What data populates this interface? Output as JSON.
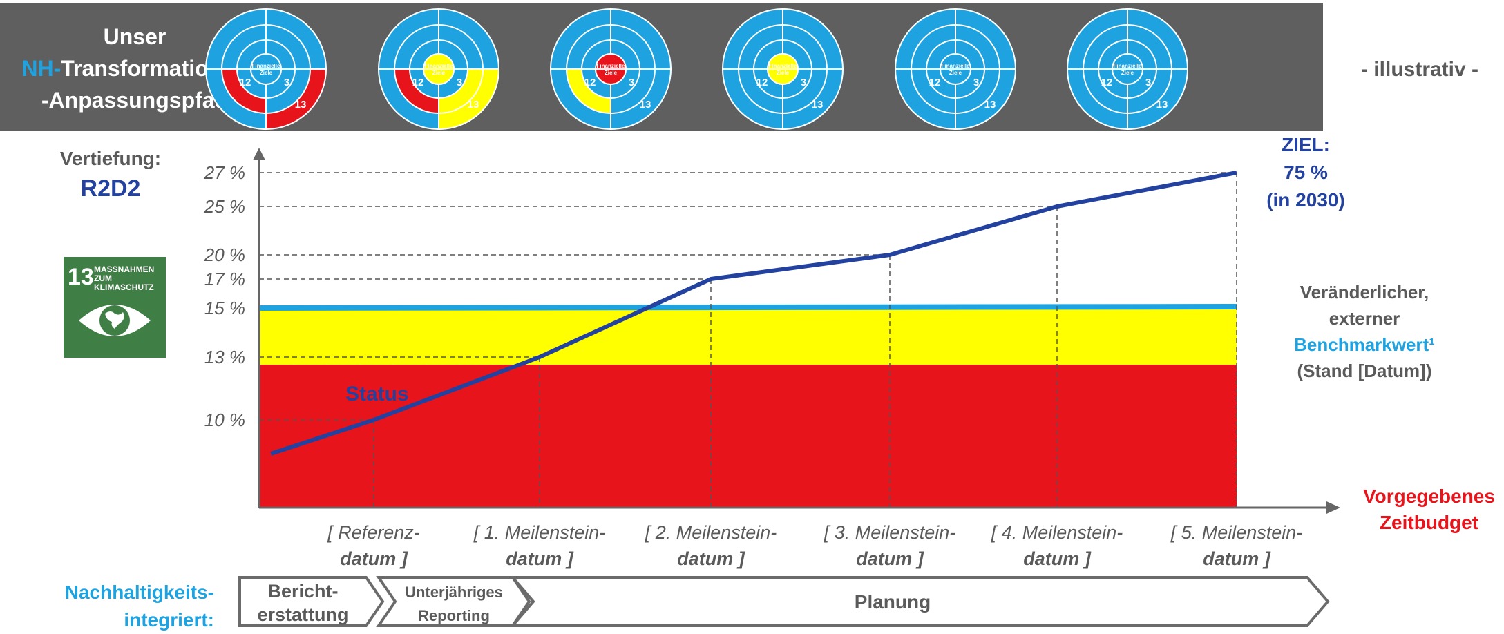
{
  "header": {
    "title_line1": "Unser",
    "title_prefix": "NH-",
    "title_line2_rest": "Transformations-/",
    "title_line3": "-Anpassungspfad",
    "illustrative_note": "- illustrativ -",
    "wheel_center_label": "Finanzielle Ziele",
    "wheel_numbers": [
      "12",
      "3",
      "13"
    ],
    "wheels": [
      {
        "center": "#1fa3e0",
        "seg12": "#e8141b",
        "seg3": "#1fa3e0",
        "seg13": "#e8141b"
      },
      {
        "center": "#ffff00",
        "seg12": "#e8141b",
        "seg3": "#ffff00",
        "seg13": "#ffff00"
      },
      {
        "center": "#e8141b",
        "seg12": "#ffff00",
        "seg3": "#1fa3e0",
        "seg13": "#1fa3e0"
      },
      {
        "center": "#ffff00",
        "seg12": "#1fa3e0",
        "seg3": "#1fa3e0",
        "seg13": "#1fa3e0"
      },
      {
        "center": "#1fa3e0",
        "seg12": "#1fa3e0",
        "seg3": "#1fa3e0",
        "seg13": "#1fa3e0"
      },
      {
        "center": "#1fa3e0",
        "seg12": "#1fa3e0",
        "seg3": "#1fa3e0",
        "seg13": "#1fa3e0"
      }
    ]
  },
  "left": {
    "vertiefung_label": "Vertiefung:",
    "vertiefung_value": "R2D2",
    "sdg": {
      "number": "13",
      "text": "MASSNAHMEN ZUM KLIMASCHUTZ",
      "icon": "eye-globe-icon",
      "color": "#3f7e44"
    }
  },
  "right": {
    "ziel_line1": "ZIEL:",
    "ziel_line2": "75 %",
    "ziel_line3": "(in 2030)",
    "benchmark_line1": "Veränderlicher,",
    "benchmark_line2": "externer",
    "benchmark_line3_prefix": "Benchmark",
    "benchmark_line3_suffix": "wert¹",
    "benchmark_line4": "(Stand [Datum])",
    "zeit_line1": "Vorgegebenes",
    "zeit_line2": "Zeitbudget"
  },
  "chart_data": {
    "type": "line",
    "ytick_labels": [
      "10 %",
      "13 %",
      "15 %",
      "17 %",
      "20 %",
      "25 %",
      "27 %"
    ],
    "yticks": [
      10,
      13,
      15,
      17,
      20,
      25,
      27
    ],
    "categories": [
      {
        "line1": "[ Referenz-",
        "line2": "datum ]"
      },
      {
        "line1": "[ 1. Meilenstein-",
        "line2": "datum ]"
      },
      {
        "line1": "[ 2. Meilenstein-",
        "line2": "datum ]"
      },
      {
        "line1": "[ 3. Meilenstein-",
        "line2": "datum ]"
      },
      {
        "line1": "[ 4. Meilenstein-",
        "line2": "datum ]"
      },
      {
        "line1": "[ 5. Meilenstein-",
        "line2": "datum ]"
      }
    ],
    "series": [
      {
        "name": "Status",
        "color": "#2342a0",
        "points": [
          {
            "x": -0.62,
            "y": 8.5
          },
          {
            "x": 0,
            "y": 10
          },
          {
            "x": 1,
            "y": 13
          },
          {
            "x": 2,
            "y": 17
          },
          {
            "x": 3,
            "y": 20
          },
          {
            "x": 4,
            "y": 25
          },
          {
            "x": 5,
            "y": 27
          }
        ]
      }
    ],
    "benchmark": {
      "value": 15,
      "color": "#1fa3e0"
    },
    "zones": [
      {
        "from": 0,
        "to": 12.5,
        "color": "#e8141b"
      },
      {
        "from": 12.5,
        "to": 15,
        "color": "#ffff00"
      }
    ]
  },
  "phases": {
    "label_line1": "Nachhaltigkeits-",
    "label_line2": "integriert:",
    "items": [
      {
        "line1": "Bericht-",
        "line2": "erstattung"
      },
      {
        "line1": "Unterjähriges",
        "line2": "Reporting"
      },
      {
        "line1": "Planung",
        "line2": ""
      }
    ]
  }
}
